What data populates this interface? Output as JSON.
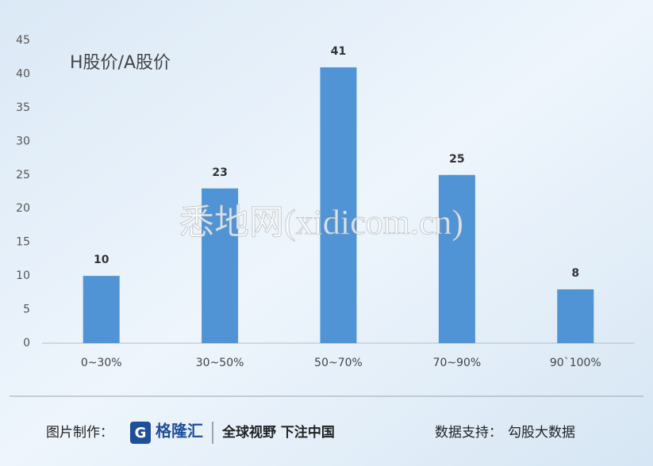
{
  "chart_data": {
    "type": "bar",
    "title": "H股价/A股价",
    "categories": [
      "0~30%",
      "30~50%",
      "50~70%",
      "70~90%",
      "90`100%"
    ],
    "values": [
      10,
      23,
      41,
      25,
      8
    ],
    "color": "#5094d6",
    "ylim": [
      0,
      45
    ],
    "yticks": [
      0,
      5,
      10,
      15,
      20,
      25,
      30,
      35,
      40,
      45
    ],
    "grid": false
  },
  "watermark": "悉地网(xidicom.cn)",
  "footer": {
    "made_by_label": "图片制作：",
    "brand": "格隆汇",
    "slogan": "全球视野 下注中国",
    "source_label": "数据支持：",
    "source": "勾股大数据"
  }
}
